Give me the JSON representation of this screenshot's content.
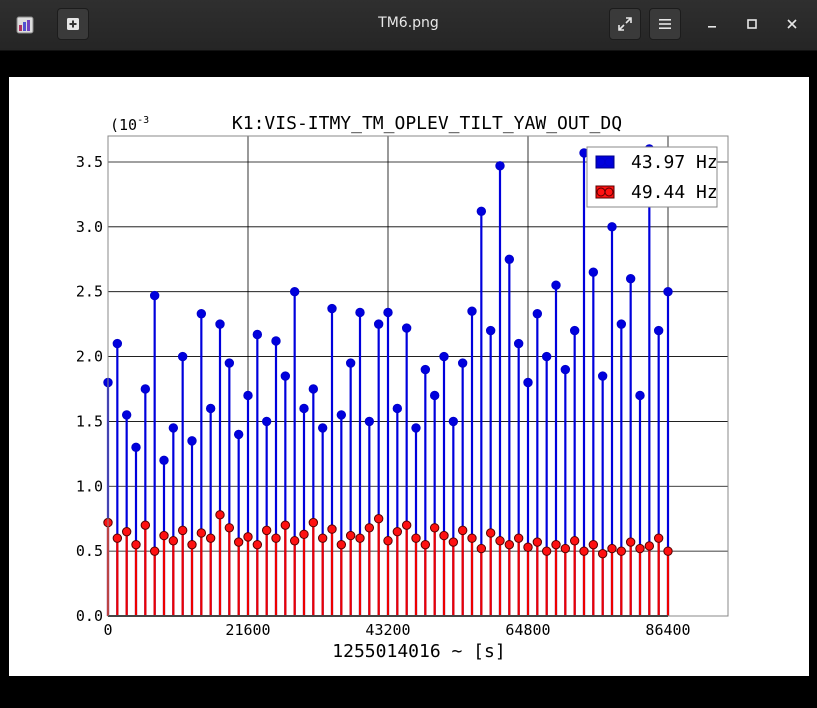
{
  "window": {
    "title": "TM6.png",
    "icons": [
      "app-icon",
      "new-tab-icon",
      "fullscreen-icon",
      "menu-icon",
      "minimize-icon",
      "maximize-icon",
      "close-icon"
    ]
  },
  "chart_data": {
    "type": "scatter",
    "title": "K1:VIS-ITMY_TM_OPLEV_TILT_YAW_OUT_DQ",
    "scale_label": "(10",
    "scale_exp": "-3",
    "xlabel": "1255014016 ~ [s]",
    "ylabel": "",
    "xlim": [
      0,
      86400
    ],
    "ylim": [
      0,
      3.6
    ],
    "x_ticks": [
      "0",
      "21600",
      "43200",
      "64800",
      "86400"
    ],
    "x_tick_values": [
      0,
      21600,
      43200,
      64800,
      86400
    ],
    "y_ticks": [
      "0.0",
      "0.5",
      "1.0",
      "1.5",
      "2.0",
      "2.5",
      "3.0",
      "3.5"
    ],
    "y_tick_values": [
      0,
      0.5,
      1.0,
      1.5,
      2.0,
      2.5,
      3.0,
      3.5
    ],
    "grid": true,
    "legend_position": "top-right",
    "series": [
      {
        "name": "43.97 Hz",
        "color": "#0000cc",
        "fill": "#0000dd",
        "x": [
          0,
          1440,
          2880,
          4320,
          5760,
          7200,
          8640,
          10080,
          11520,
          12960,
          14400,
          15840,
          17280,
          18720,
          20160,
          21600,
          23040,
          24480,
          25920,
          27360,
          28800,
          30240,
          31680,
          33120,
          34560,
          36000,
          37440,
          38880,
          40320,
          41760,
          43200,
          44640,
          46080,
          47520,
          48960,
          50400,
          51840,
          53280,
          54720,
          56160,
          57600,
          59040,
          60480,
          61920,
          63360,
          64800,
          66240,
          67680,
          69120,
          70560,
          72000,
          73440,
          74880,
          76320,
          77760,
          79200,
          80640,
          82080,
          83520,
          84960,
          86400
        ],
        "y": [
          1.8,
          2.1,
          1.55,
          1.3,
          1.75,
          2.47,
          1.2,
          1.45,
          2.0,
          1.35,
          2.33,
          1.6,
          2.25,
          1.95,
          1.4,
          1.7,
          2.17,
          1.5,
          2.12,
          1.85,
          2.5,
          1.6,
          1.75,
          1.45,
          2.37,
          1.55,
          1.95,
          2.34,
          1.5,
          2.25,
          2.34,
          1.6,
          2.22,
          1.45,
          1.9,
          1.7,
          2.0,
          1.5,
          1.95,
          2.35,
          3.12,
          2.2,
          3.47,
          2.75,
          2.1,
          1.8,
          2.33,
          2.0,
          2.55,
          1.9,
          2.2,
          3.57,
          2.65,
          1.85,
          3.0,
          2.25,
          2.6,
          1.7,
          3.6,
          2.2,
          2.5
        ]
      },
      {
        "name": "49.44 Hz",
        "color": "#550000",
        "fill": "#ff1111",
        "x": [
          0,
          1440,
          2880,
          4320,
          5760,
          7200,
          8640,
          10080,
          11520,
          12960,
          14400,
          15840,
          17280,
          18720,
          20160,
          21600,
          23040,
          24480,
          25920,
          27360,
          28800,
          30240,
          31680,
          33120,
          34560,
          36000,
          37440,
          38880,
          40320,
          41760,
          43200,
          44640,
          46080,
          47520,
          48960,
          50400,
          51840,
          53280,
          54720,
          56160,
          57600,
          59040,
          60480,
          61920,
          63360,
          64800,
          66240,
          67680,
          69120,
          70560,
          72000,
          73440,
          74880,
          76320,
          77760,
          79200,
          80640,
          82080,
          83520,
          84960,
          86400
        ],
        "y": [
          0.72,
          0.6,
          0.65,
          0.55,
          0.7,
          0.5,
          0.62,
          0.58,
          0.66,
          0.55,
          0.64,
          0.6,
          0.78,
          0.68,
          0.57,
          0.61,
          0.55,
          0.66,
          0.6,
          0.7,
          0.58,
          0.63,
          0.72,
          0.6,
          0.67,
          0.55,
          0.62,
          0.6,
          0.68,
          0.75,
          0.58,
          0.65,
          0.7,
          0.6,
          0.55,
          0.68,
          0.62,
          0.57,
          0.66,
          0.6,
          0.52,
          0.64,
          0.58,
          0.55,
          0.6,
          0.53,
          0.57,
          0.5,
          0.55,
          0.52,
          0.58,
          0.5,
          0.55,
          0.48,
          0.52,
          0.5,
          0.57,
          0.52,
          0.54,
          0.6,
          0.5
        ]
      }
    ]
  }
}
